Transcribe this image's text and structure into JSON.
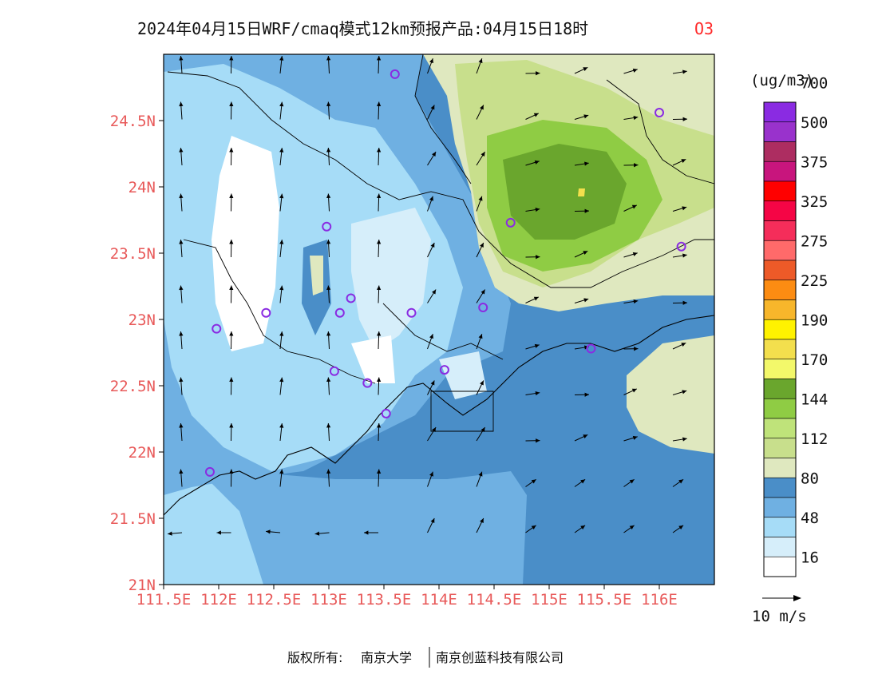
{
  "title": {
    "main": "2024年04月15日WRF/cmaq模式12km预报产品:04月15日18时",
    "pollutant": "O3"
  },
  "map": {
    "lon_range": [
      111.5,
      116.5
    ],
    "lat_range": [
      21.0,
      25.0
    ],
    "lat_ticks": [
      {
        "value": 21.0,
        "label": "21N"
      },
      {
        "value": 21.5,
        "label": "21.5N"
      },
      {
        "value": 22.0,
        "label": "22N"
      },
      {
        "value": 22.5,
        "label": "22.5N"
      },
      {
        "value": 23.0,
        "label": "23N"
      },
      {
        "value": 23.5,
        "label": "23.5N"
      },
      {
        "value": 24.0,
        "label": "24N"
      },
      {
        "value": 24.5,
        "label": "24.5N"
      }
    ],
    "lon_ticks": [
      {
        "value": 111.5,
        "label": "111.5E"
      },
      {
        "value": 112.0,
        "label": "112E"
      },
      {
        "value": 112.5,
        "label": "112.5E"
      },
      {
        "value": 113.0,
        "label": "113E"
      },
      {
        "value": 113.5,
        "label": "113.5E"
      },
      {
        "value": 114.0,
        "label": "114E"
      },
      {
        "value": 114.5,
        "label": "114.5E"
      },
      {
        "value": 115.0,
        "label": "115E"
      },
      {
        "value": 115.5,
        "label": "115.5E"
      },
      {
        "value": 116.0,
        "label": "116E"
      }
    ],
    "stations": [
      {
        "lon": 113.6,
        "lat": 24.85
      },
      {
        "lon": 116.0,
        "lat": 24.56
      },
      {
        "lon": 114.65,
        "lat": 23.73
      },
      {
        "lon": 116.2,
        "lat": 23.55
      },
      {
        "lon": 112.98,
        "lat": 23.7
      },
      {
        "lon": 112.43,
        "lat": 23.05
      },
      {
        "lon": 111.98,
        "lat": 22.93
      },
      {
        "lon": 113.1,
        "lat": 23.05
      },
      {
        "lon": 113.2,
        "lat": 23.16
      },
      {
        "lon": 113.75,
        "lat": 23.05
      },
      {
        "lon": 114.4,
        "lat": 23.09
      },
      {
        "lon": 113.05,
        "lat": 22.61
      },
      {
        "lon": 113.35,
        "lat": 22.52
      },
      {
        "lon": 113.52,
        "lat": 22.29
      },
      {
        "lon": 114.05,
        "lat": 22.62
      },
      {
        "lon": 115.38,
        "lat": 22.78
      },
      {
        "lon": 111.92,
        "lat": 21.85
      }
    ]
  },
  "legend": {
    "unit": "(ug/m3)",
    "colors": [
      "#ffffff",
      "#d6eefa",
      "#a6dcf7",
      "#6fb0e2",
      "#4a8ec8",
      "#dfe8bf",
      "#c8df8c",
      "#bfe37a",
      "#8fcc44",
      "#6aa62d",
      "#f3f86a",
      "#f3df4d",
      "#fff200",
      "#f7b62b",
      "#fc8c12",
      "#ed5a28",
      "#ff6a6a",
      "#f52d5a",
      "#f50545",
      "#ff0000",
      "#c8157d",
      "#ad2d61",
      "#9932cc",
      "#8a2be2"
    ],
    "labels": [
      "16",
      "48",
      "80",
      "112",
      "144",
      "170",
      "190",
      "225",
      "275",
      "325",
      "375",
      "500",
      "700"
    ],
    "label_boundary_index": [
      1,
      3,
      5,
      7,
      9,
      11,
      13,
      15,
      17,
      19,
      21,
      23,
      25
    ]
  },
  "wind_scale": {
    "label": "10 m/s"
  },
  "footer": {
    "copyright_prefix": "版权所有:",
    "org1": "南京大学",
    "org2": "南京创蓝科技有限公司"
  }
}
